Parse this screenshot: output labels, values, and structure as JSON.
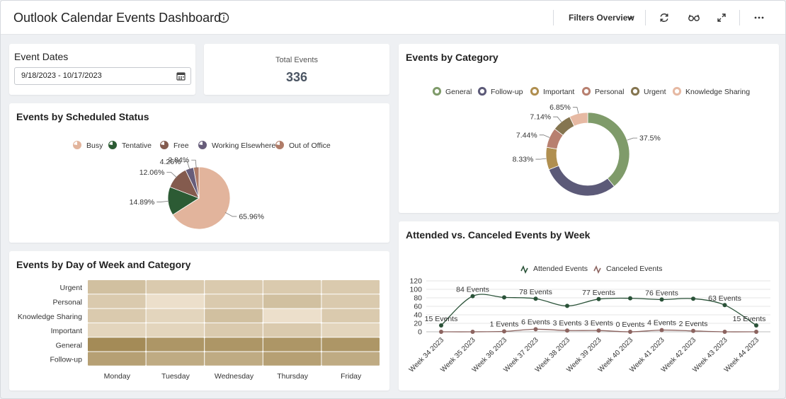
{
  "header": {
    "title": "Outlook Calendar Events Dashboard",
    "filters_label": "Filters Overview",
    "icons": [
      "info-icon",
      "chevron-down-icon",
      "refresh-icon",
      "glasses-icon",
      "expand-icon",
      "more-icon"
    ]
  },
  "event_dates": {
    "label": "Event Dates",
    "value": "9/18/2023 - 10/17/2023"
  },
  "total_events": {
    "label": "Total Events",
    "value": "336"
  },
  "colors": {
    "busy": "#e2b49c",
    "tentative": "#2c5b34",
    "free": "#845b4e",
    "working_elsewhere": "#675d7a",
    "out_of_office": "#b07c68",
    "general": "#7f9b6a",
    "follow_up": "#5c5a78",
    "important": "#b08f50",
    "personal": "#b88070",
    "urgent": "#857550",
    "knowledge_sharing": "#e6b9a3",
    "attended": "#2a5238",
    "canceled": "#8c6460"
  },
  "chart_data": [
    {
      "type": "pie",
      "title": "Events by Scheduled Status",
      "categories": [
        "Busy",
        "Tentative",
        "Free",
        "Working Elsewhere",
        "Out of Office"
      ],
      "values": [
        65.96,
        14.89,
        12.06,
        4.26,
        2.84
      ],
      "labels": [
        "65.96%",
        "14.89%",
        "12.06%",
        "4.26%",
        "2.84%"
      ],
      "legend": "top"
    },
    {
      "type": "pie",
      "variant": "donut",
      "title": "Events by Category",
      "categories": [
        "General",
        "Follow-up",
        "Important",
        "Personal",
        "Urgent",
        "Knowledge Sharing"
      ],
      "values": [
        37.5,
        28.74,
        8.33,
        7.44,
        7.14,
        6.85
      ],
      "labels": [
        "37.5%",
        "",
        "8.33%",
        "7.44%",
        "7.14%",
        "6.85%"
      ],
      "legend": "top"
    },
    {
      "type": "heatmap",
      "title": "Events by Day of Week and Category",
      "rows": [
        "Urgent",
        "Personal",
        "Knowledge Sharing",
        "Important",
        "General",
        "Follow-up"
      ],
      "columns": [
        "Monday",
        "Tuesday",
        "Wednesday",
        "Thursday",
        "Friday"
      ],
      "values": [
        [
          5,
          4,
          4,
          4,
          4
        ],
        [
          4,
          2,
          4,
          5,
          4
        ],
        [
          4,
          3,
          5,
          2,
          4
        ],
        [
          3,
          3,
          4,
          4,
          3
        ],
        [
          10,
          9,
          9,
          9,
          9
        ],
        [
          8,
          7,
          7,
          8,
          7
        ]
      ],
      "color_range": [
        "#ecdfcb",
        "#a48b57"
      ]
    },
    {
      "type": "line",
      "title": "Attended vs. Canceled Events by Week",
      "x": [
        "Week 34 2023",
        "Week 35 2023",
        "Week 36 2023",
        "Week 37 2023",
        "Week 38 2023",
        "Week 39 2023",
        "Week 40 2023",
        "Week 41 2023",
        "Week 42 2023",
        "Week 43 2023",
        "Week 44 2023"
      ],
      "series": [
        {
          "name": "Attended Events",
          "values": [
            15,
            84,
            81,
            78,
            61,
            77,
            79,
            76,
            78,
            63,
            15
          ],
          "labels": [
            "15 Events",
            "84 Events",
            "",
            "78 Events",
            "",
            "77 Events",
            "",
            "76 Events",
            "",
            "63 Events",
            "15 Events"
          ]
        },
        {
          "name": "Canceled Events",
          "values": [
            0,
            0,
            1,
            6,
            3,
            3,
            0,
            4,
            2,
            0,
            0
          ],
          "labels": [
            "",
            "",
            "1 Events",
            "6 Events",
            "3 Events",
            "3 Events",
            "0 Events",
            "4 Events",
            "2 Events",
            "",
            ""
          ]
        }
      ],
      "ylim": [
        0,
        120
      ],
      "yticks": [
        "0",
        "20",
        "40",
        "60",
        "80",
        "100",
        "120"
      ],
      "legend": "top",
      "grid": true
    }
  ]
}
